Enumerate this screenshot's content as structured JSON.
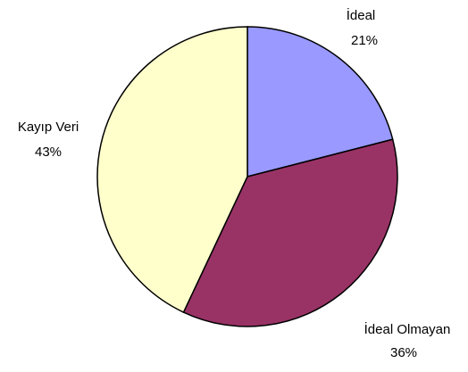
{
  "chart_data": {
    "type": "pie",
    "title": "",
    "slices": [
      {
        "label": "İdeal",
        "value": 21,
        "value_label": "21%",
        "color": "#9999ff"
      },
      {
        "label": "İdeal Olmayan",
        "value": 36,
        "value_label": "36%",
        "color": "#993366"
      },
      {
        "label": "Kayıp Veri",
        "value": 43,
        "value_label": "43%",
        "color": "#ffffcc"
      }
    ],
    "start_angle_deg": 0,
    "direction": "clockwise",
    "legend": "none",
    "edge_color": "#000000"
  }
}
